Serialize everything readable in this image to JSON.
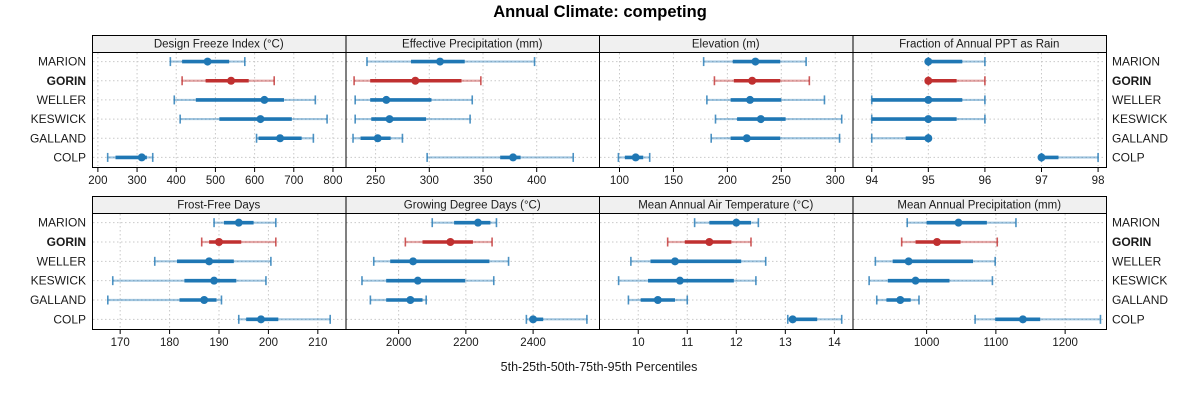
{
  "figure": {
    "title": "Annual Climate: competing",
    "xlabel": "5th-25th-50th-75th-95th Percentiles"
  },
  "chart_data": {
    "type": "scatter",
    "subtype": "percentile-interval-dotplot",
    "title": "Annual Climate: competing",
    "xlabel": "5th-25th-50th-75th-95th Percentiles",
    "percentiles": [
      5,
      25,
      50,
      75,
      95
    ],
    "stations": [
      "MARION",
      "GORIN",
      "WELLER",
      "KESWICK",
      "GALLAND",
      "COLP"
    ],
    "highlight_station": "GORIN",
    "legend_position": "none",
    "grid": {
      "rows": 2,
      "cols": 4,
      "gridlines": "dotted"
    },
    "colors": {
      "normal": "#1f77b4",
      "highlight": "#c03030",
      "grid_line": "#c9c9c9",
      "panel_border": "#000000",
      "header_bg": "#f0f0f0",
      "tick_text": "#1a1a1a"
    },
    "panels": [
      {
        "title": "Design Freeze Index (°C)",
        "xlim": [
          185,
          832
        ],
        "ticks": [
          200,
          300,
          400,
          500,
          600,
          700,
          800
        ],
        "series": [
          {
            "name": "MARION",
            "values": [
              385,
              415,
              480,
              535,
              575
            ]
          },
          {
            "name": "GORIN",
            "values": [
              415,
              475,
              540,
              585,
              650
            ]
          },
          {
            "name": "WELLER",
            "values": [
              395,
              450,
              625,
              675,
              755
            ]
          },
          {
            "name": "KESWICK",
            "values": [
              410,
              510,
              615,
              695,
              785
            ]
          },
          {
            "name": "GALLAND",
            "values": [
              605,
              610,
              665,
              720,
              750
            ]
          },
          {
            "name": "COLP",
            "values": [
              225,
              245,
              312,
              325,
              340
            ]
          }
        ]
      },
      {
        "title": "Effective Precipitation (mm)",
        "xlim": [
          222,
          458
        ],
        "ticks": [
          250,
          300,
          350,
          400
        ],
        "series": [
          {
            "name": "MARION",
            "values": [
              242,
              283,
              310,
              333,
              398
            ]
          },
          {
            "name": "GORIN",
            "values": [
              230,
              245,
              287,
              330,
              348
            ]
          },
          {
            "name": "WELLER",
            "values": [
              231,
              245,
              260,
              302,
              340
            ]
          },
          {
            "name": "KESWICK",
            "values": [
              231,
              246,
              263,
              297,
              338
            ]
          },
          {
            "name": "GALLAND",
            "values": [
              229,
              236,
              252,
              264,
              275
            ]
          },
          {
            "name": "COLP",
            "values": [
              298,
              366,
              378,
              385,
              434
            ]
          }
        ]
      },
      {
        "title": "Elevation (m)",
        "xlim": [
          81,
          316
        ],
        "ticks": [
          100,
          150,
          200,
          250,
          300
        ],
        "series": [
          {
            "name": "MARION",
            "values": [
              178,
              205,
              226,
              249,
              273
            ]
          },
          {
            "name": "GORIN",
            "values": [
              188,
              206,
              223,
              249,
              276
            ]
          },
          {
            "name": "WELLER",
            "values": [
              181,
              203,
              221,
              250,
              290
            ]
          },
          {
            "name": "KESWICK",
            "values": [
              189,
              209,
              231,
              254,
              306
            ]
          },
          {
            "name": "GALLAND",
            "values": [
              185,
              203,
              218,
              249,
              304
            ]
          },
          {
            "name": "COLP",
            "values": [
              99,
              105,
              115,
              122,
              128
            ]
          }
        ]
      },
      {
        "title": "Fraction of Annual PPT as Rain",
        "xlim": [
          93.66,
          98.14
        ],
        "ticks": [
          94,
          95,
          96,
          97,
          98
        ],
        "series": [
          {
            "name": "MARION",
            "values": [
              95,
              95,
              95,
              95.6,
              96
            ]
          },
          {
            "name": "GORIN",
            "values": [
              95,
              95,
              95,
              95.5,
              96
            ]
          },
          {
            "name": "WELLER",
            "values": [
              94,
              94,
              95,
              95.6,
              96
            ]
          },
          {
            "name": "KESWICK",
            "values": [
              94,
              94,
              95,
              95.5,
              96
            ]
          },
          {
            "name": "GALLAND",
            "values": [
              94,
              94.6,
              95,
              95,
              95
            ]
          },
          {
            "name": "COLP",
            "values": [
              97,
              97,
              97,
              97.3,
              98
            ]
          }
        ]
      },
      {
        "title": "Frost-Free Days",
        "xlim": [
          164.3,
          215.6
        ],
        "ticks": [
          170,
          180,
          190,
          200,
          210
        ],
        "series": [
          {
            "name": "MARION",
            "values": [
              189,
              191,
              194,
              197,
              201.5
            ]
          },
          {
            "name": "GORIN",
            "values": [
              186.5,
              188,
              190,
              194.5,
              201.5
            ]
          },
          {
            "name": "WELLER",
            "values": [
              177,
              181.5,
              188,
              193,
              200.5
            ]
          },
          {
            "name": "KESWICK",
            "values": [
              168.5,
              183,
              189,
              193.5,
              199.5
            ]
          },
          {
            "name": "GALLAND",
            "values": [
              167.5,
              182,
              187,
              189.5,
              190.5
            ]
          },
          {
            "name": "COLP",
            "values": [
              194,
              195.5,
              198.5,
              202,
              212.5
            ]
          }
        ]
      },
      {
        "title": "Growing Degree Days (°C)",
        "xlim": [
          1842,
          2596
        ],
        "ticks": [
          2000,
          2200,
          2400
        ],
        "series": [
          {
            "name": "MARION",
            "values": [
              2100,
              2165,
              2236,
              2273,
              2291
            ]
          },
          {
            "name": "GORIN",
            "values": [
              2020,
              2071,
              2154,
              2221,
              2278
            ]
          },
          {
            "name": "WELLER",
            "values": [
              1926,
              1975,
              2043,
              2270,
              2327
            ]
          },
          {
            "name": "KESWICK",
            "values": [
              1891,
              1963,
              2057,
              2198,
              2283
            ]
          },
          {
            "name": "GALLAND",
            "values": [
              1916,
              1963,
              2035,
              2071,
              2082
            ]
          },
          {
            "name": "COLP",
            "values": [
              2380,
              2390,
              2400,
              2430,
              2560
            ]
          }
        ]
      },
      {
        "title": "Mean Annual Air Temperature (°C)",
        "xlim": [
          9.2,
          14.37
        ],
        "ticks": [
          10,
          11,
          12,
          13,
          14
        ],
        "series": [
          {
            "name": "MARION",
            "values": [
              11.15,
              11.45,
              12.0,
              12.3,
              12.45
            ]
          },
          {
            "name": "GORIN",
            "values": [
              10.6,
              10.95,
              11.45,
              11.9,
              12.3
            ]
          },
          {
            "name": "WELLER",
            "values": [
              9.85,
              10.25,
              10.75,
              12.1,
              12.6
            ]
          },
          {
            "name": "KESWICK",
            "values": [
              9.6,
              10.2,
              10.85,
              11.95,
              12.4
            ]
          },
          {
            "name": "GALLAND",
            "values": [
              9.8,
              10.05,
              10.4,
              10.75,
              11.0
            ]
          },
          {
            "name": "COLP",
            "values": [
              13.05,
              13.1,
              13.15,
              13.65,
              14.15
            ]
          }
        ]
      },
      {
        "title": "Mean Annual Precipitation (mm)",
        "xlim": [
          893,
          1259
        ],
        "ticks": [
          1000,
          1100,
          1200
        ],
        "series": [
          {
            "name": "MARION",
            "values": [
              972,
              1000,
              1046,
              1087,
              1129
            ]
          },
          {
            "name": "GORIN",
            "values": [
              964,
              984,
              1015,
              1049,
              1102
            ]
          },
          {
            "name": "WELLER",
            "values": [
              926,
              951,
              974,
              1067,
              1099
            ]
          },
          {
            "name": "KESWICK",
            "values": [
              917,
              944,
              984,
              1033,
              1095
            ]
          },
          {
            "name": "GALLAND",
            "values": [
              928,
              942,
              962,
              977,
              989
            ]
          },
          {
            "name": "COLP",
            "values": [
              1070,
              1099,
              1139,
              1164,
              1251
            ]
          }
        ]
      }
    ]
  }
}
